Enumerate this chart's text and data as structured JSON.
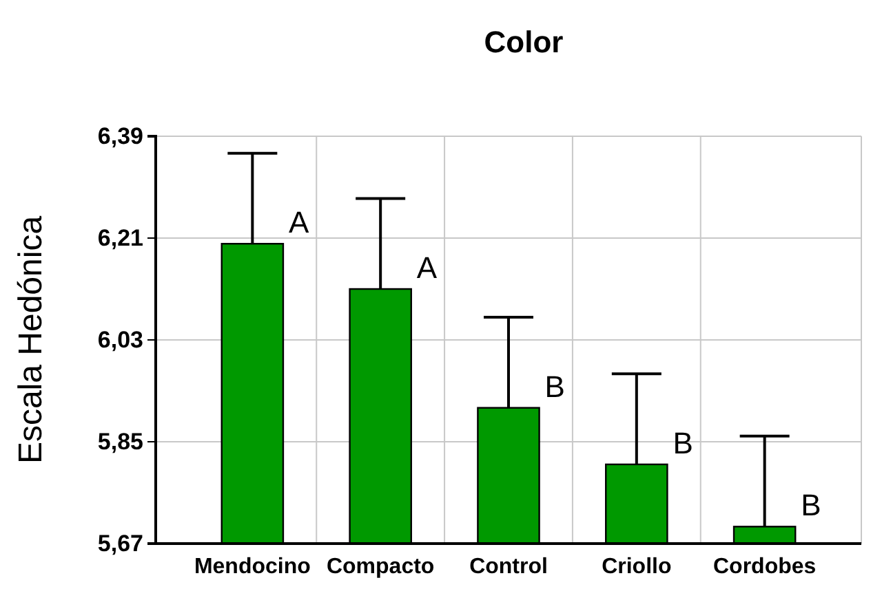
{
  "chart_data": {
    "type": "bar",
    "title": "Color",
    "ylabel": "Escala Hedónica",
    "categories": [
      "Mendocino",
      "Compacto",
      "Control",
      "Criollo",
      "Cordobes"
    ],
    "values": [
      6.2,
      6.12,
      5.91,
      5.81,
      5.7
    ],
    "errors": [
      [
        6.2,
        6.36
      ],
      [
        6.12,
        6.28
      ],
      [
        5.91,
        6.07
      ],
      [
        5.81,
        5.97
      ],
      [
        5.7,
        5.86
      ]
    ],
    "color": "#009900",
    "ylim": [
      5.67,
      6.39
    ],
    "yticks": [
      {
        "value": 5.67,
        "label": "5,67"
      },
      {
        "value": 5.85,
        "label": "5,85"
      },
      {
        "value": 6.03,
        "label": "6,03"
      },
      {
        "value": 6.21,
        "label": "6,21"
      },
      {
        "value": 6.39,
        "label": "6,39"
      }
    ],
    "grid": true,
    "annotations": [
      {
        "text": "A",
        "x": "Mendocino",
        "y": 6.2
      },
      {
        "text": "A",
        "x": "Compacto",
        "y": 6.12
      },
      {
        "text": "B",
        "x": "Control",
        "y": 5.91
      },
      {
        "text": "B",
        "x": "Criollo",
        "y": 5.81
      },
      {
        "text": "B",
        "x": "Cordobes",
        "y": 5.7
      }
    ]
  }
}
